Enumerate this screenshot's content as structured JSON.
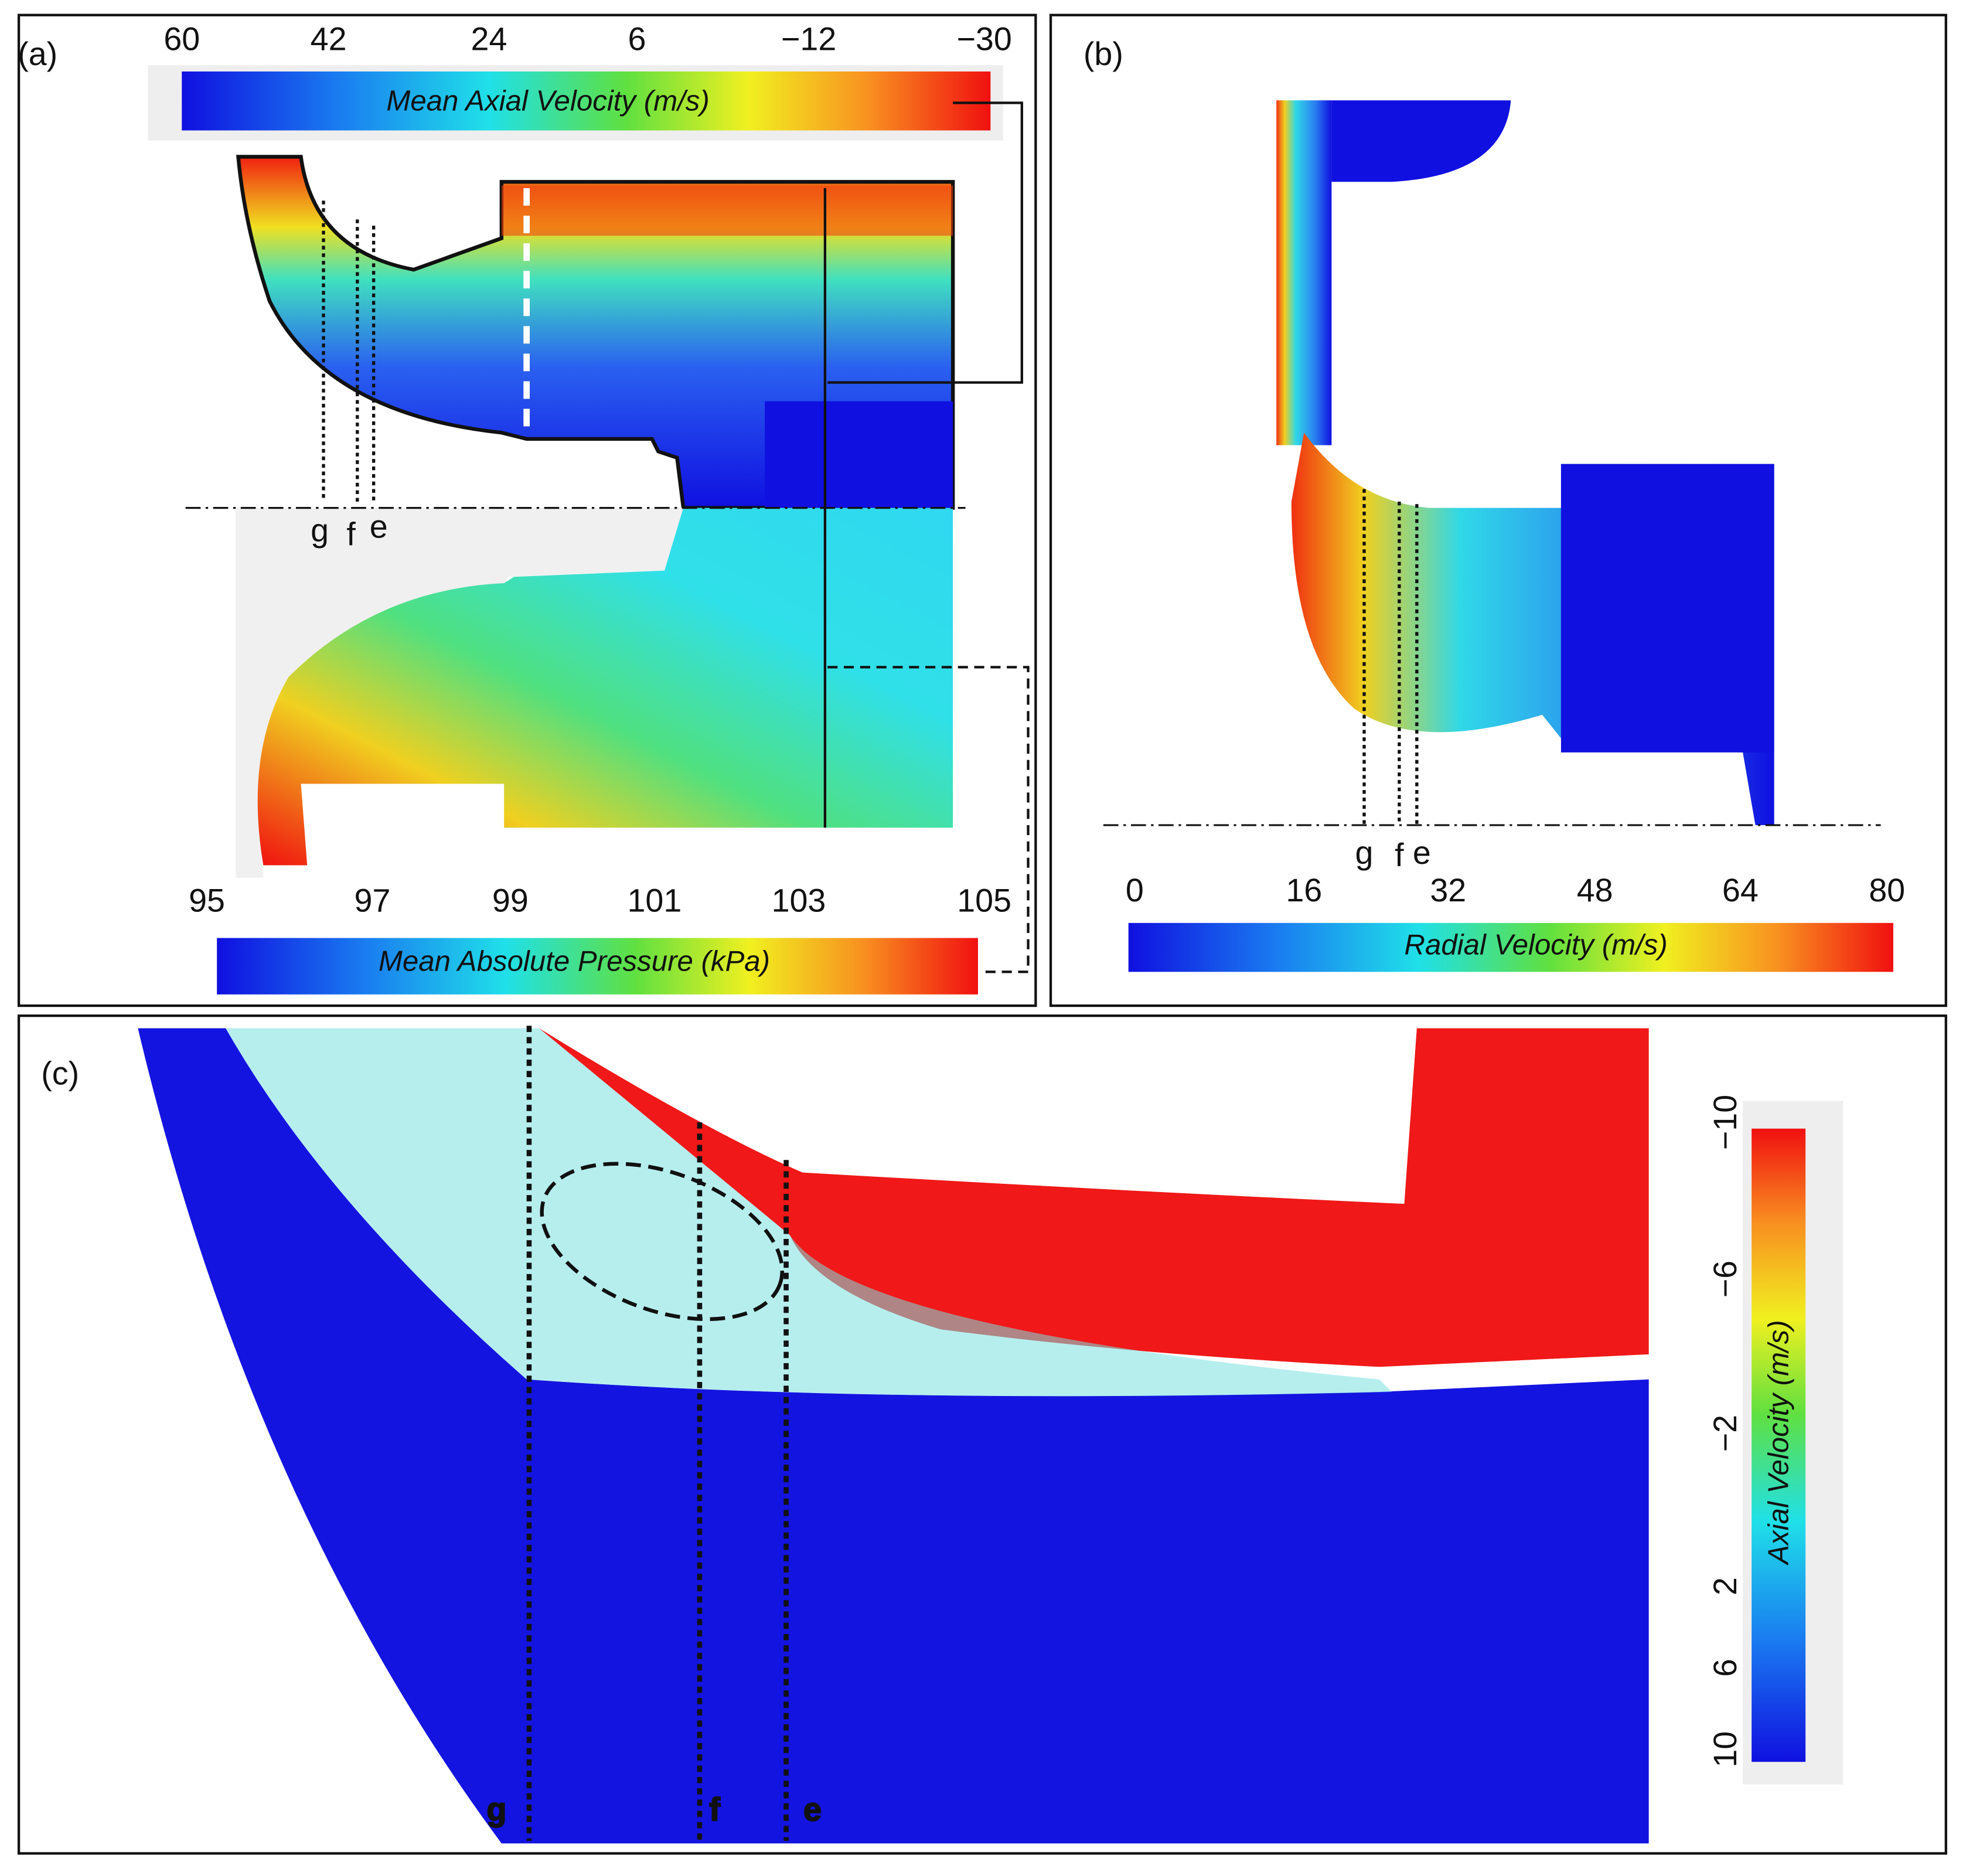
{
  "panels": [
    {
      "label": "(a)",
      "colorbars": [
        {
          "title": "Mean Axial Velocity (m/s)",
          "ticks": [
            "60",
            "42",
            "24",
            "6",
            "−12",
            "−30"
          ]
        },
        {
          "title": "Mean Absolute Pressure (kPa)",
          "ticks": [
            "95",
            "97",
            "99",
            "101",
            "103",
            "105"
          ]
        }
      ],
      "section_labels": [
        "g",
        "f",
        "e"
      ]
    },
    {
      "label": "(b)",
      "colorbars": [
        {
          "title": "Radial Velocity (m/s)",
          "ticks": [
            "0",
            "16",
            "32",
            "48",
            "64",
            "80"
          ]
        }
      ],
      "section_labels": [
        "g",
        "f",
        "e"
      ]
    },
    {
      "label": "(c)",
      "colorbars": [
        {
          "title": "Axial Velocity (m/s)",
          "ticks": [
            "−10",
            "−6",
            "−2",
            "2",
            "6",
            "10"
          ]
        }
      ],
      "section_labels": [
        "g",
        "f",
        "e"
      ]
    }
  ]
}
